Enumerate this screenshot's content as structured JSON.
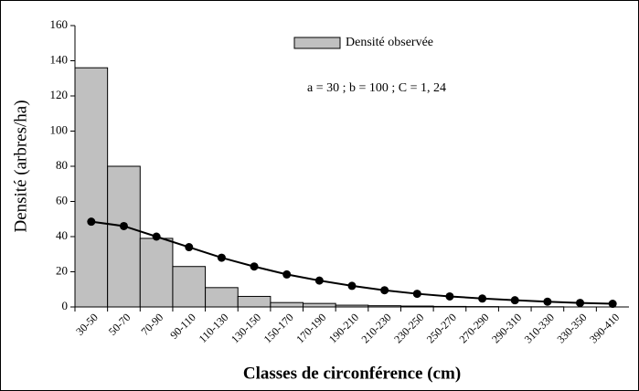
{
  "chart_data": {
    "type": "bar",
    "xlabel": "Classes de circonférence (cm)",
    "ylabel": "Densité (arbres/ha)",
    "annotation": "a = 30 ; b = 100 ; C = 1, 24",
    "categories": [
      "30-50",
      "50-70",
      "70-90",
      "90-110",
      "110-130",
      "130-150",
      "150-170",
      "170-190",
      "190-210",
      "210-230",
      "230-250",
      "250-270",
      "270-290",
      "290-310",
      "310-330",
      "330-350",
      "390-410"
    ],
    "series": [
      {
        "name": "Densité observée",
        "type": "bar",
        "color": "#c0c0c0",
        "values": [
          136,
          80,
          39,
          23,
          11,
          6,
          2.5,
          2,
          1,
          0.7,
          0.5,
          0.3,
          0.2,
          0.1,
          0.1,
          0,
          0
        ]
      },
      {
        "type": "line",
        "color": "#000000",
        "values": [
          48.5,
          46,
          40,
          34,
          28,
          23,
          18.5,
          15,
          12,
          9.5,
          7.5,
          6,
          4.8,
          3.8,
          3,
          2.3,
          1.8
        ]
      }
    ],
    "ylim": [
      0,
      160
    ],
    "yticks": [
      0,
      20,
      40,
      60,
      80,
      100,
      120,
      140,
      160
    ],
    "legend": "top"
  }
}
